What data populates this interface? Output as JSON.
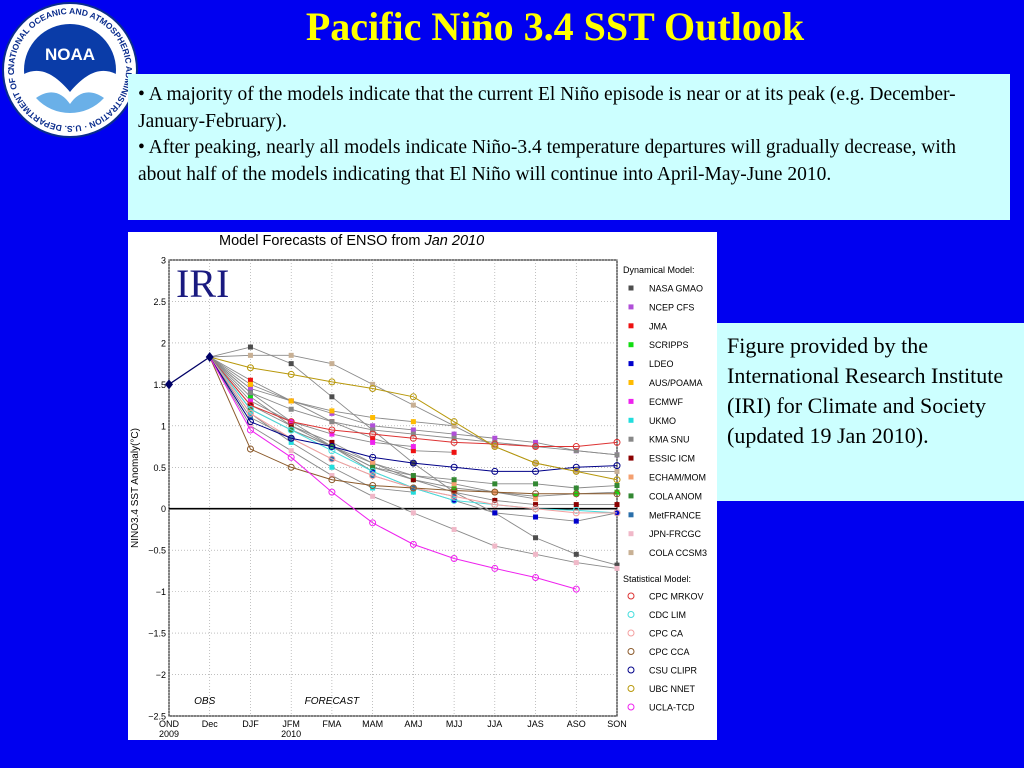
{
  "title": "Pacific Niño 3.4 SST Outlook",
  "logo": {
    "text": "NOAA",
    "ring_text": "NATIONAL OCEANIC AND ATMOSPHERIC ADMINISTRATION · U.S. DEPARTMENT OF COMMERCE"
  },
  "bullets": [
    "• A majority of the models indicate that the current El Niño episode is near or at its peak (e.g. December-January-February).",
    "• After peaking, nearly all models indicate Niño-3.4 temperature departures will gradually decrease, with about half of the models indicating that El Niño will continue into April-May-June 2010."
  ],
  "caption": "Figure provided by the International Research Institute (IRI) for Climate and Society (updated 19 Jan 2010).",
  "chart_data": {
    "type": "line",
    "title_prefix": "Model Forecasts of ENSO from ",
    "title_date": "Jan 2010",
    "watermark": "IRI",
    "ylabel": "NINO3.4 SST Anomaly(°C)",
    "ylim": [
      -2.5,
      3
    ],
    "yticks": [
      "3",
      "2.5",
      "2",
      "1.5",
      "1",
      "0.5",
      "0",
      "−0.5",
      "−1",
      "−1.5",
      "−2",
      "−2.5"
    ],
    "ytick_values": [
      3,
      2.5,
      2,
      1.5,
      1,
      0.5,
      0,
      -0.5,
      -1,
      -1.5,
      -2,
      -2.5
    ],
    "categories": [
      "OND",
      "Dec",
      "DJF",
      "JFM",
      "FMA",
      "MAM",
      "AMJ",
      "MJJ",
      "JJA",
      "JAS",
      "ASO",
      "SON"
    ],
    "year_labels": [
      {
        "label": "2009",
        "at": "OND"
      },
      {
        "label": "2010",
        "at": "JFM"
      }
    ],
    "obs_label": "OBS",
    "forecast_label": "FORECAST",
    "grid": true,
    "observed": [
      1.5,
      1.83
    ],
    "legend_dyn_title": "Dynamical Model:",
    "legend_stat_title": "Statistical Model:",
    "legend_placement": "right",
    "dynamical": [
      {
        "name": "NASA GMAO",
        "color": "#4d4d4d",
        "values": [
          1.95,
          1.75,
          1.35,
          0.95,
          0.55,
          0.2,
          -0.05,
          -0.35,
          -0.55,
          -0.68
        ]
      },
      {
        "name": "NCEP CFS",
        "color": "#b04fd8",
        "values": [
          1.45,
          1.3,
          1.15,
          1.0,
          0.95,
          0.9,
          0.85,
          0.8,
          0.7,
          0.65
        ]
      },
      {
        "name": "JMA",
        "color": "#ee1111",
        "values": [
          1.55,
          1.3,
          1.05,
          0.85,
          0.7,
          0.68
        ]
      },
      {
        "name": "SCRIPPS",
        "color": "#11dd11",
        "values": [
          1.35,
          1.0,
          0.75,
          0.5,
          0.35,
          0.25,
          0.2,
          0.15,
          0.18,
          0.2
        ]
      },
      {
        "name": "LDEO",
        "color": "#0000cc",
        "values": [
          1.4,
          1.05,
          0.75,
          0.45,
          0.25,
          0.1,
          -0.05,
          -0.1,
          -0.15,
          -0.05
        ]
      },
      {
        "name": "AUS/POAMA",
        "color": "#ffbb00",
        "values": [
          1.5,
          1.3,
          1.18,
          1.1,
          1.05,
          1.0
        ]
      },
      {
        "name": "ECMWF",
        "color": "#ee22ee",
        "values": [
          1.3,
          1.05,
          0.9,
          0.8,
          0.75
        ]
      },
      {
        "name": "UKMO",
        "color": "#22dddd",
        "values": [
          1.15,
          0.8,
          0.5,
          0.25,
          0.2
        ]
      },
      {
        "name": "KMA SNU",
        "color": "#888888",
        "values": [
          1.4,
          1.2,
          1.05,
          0.95,
          0.9,
          0.85,
          0.8,
          0.75,
          0.7,
          0.65
        ]
      },
      {
        "name": "ESSIC ICM",
        "color": "#8b0000",
        "values": [
          1.25,
          1.0,
          0.8,
          0.55,
          0.35,
          0.2,
          0.1,
          0.05,
          0.05,
          0.05
        ]
      },
      {
        "name": "ECHAM/MOM",
        "color": "#f4a070",
        "values": [
          1.2,
          0.95,
          0.75,
          0.55,
          0.4,
          0.3,
          0.2,
          0.12
        ]
      },
      {
        "name": "COLA ANOM",
        "color": "#338833",
        "values": [
          1.2,
          0.95,
          0.75,
          0.5,
          0.4,
          0.35,
          0.3,
          0.3,
          0.25,
          0.28
        ]
      },
      {
        "name": "MetFRANCE",
        "color": "#2a6faa",
        "values": [
          1.1,
          0.85,
          0.6,
          0.4,
          0.25,
          0.15
        ]
      },
      {
        "name": "JPN-FRCGC",
        "color": "#f0b8c8",
        "values": [
          1.0,
          0.7,
          0.4,
          0.15,
          -0.05,
          -0.25,
          -0.45,
          -0.55,
          -0.65,
          -0.72
        ]
      },
      {
        "name": "COLA CCSM3",
        "color": "#c8b094",
        "values": [
          1.85,
          1.85,
          1.75,
          1.5,
          1.25,
          1.0,
          0.75,
          0.55,
          0.45,
          0.45
        ]
      }
    ],
    "statistical": [
      {
        "name": "CPC MRKOV",
        "color": "#dd3333",
        "values": [
          1.25,
          1.05,
          0.95,
          0.9,
          0.85,
          0.8,
          0.78,
          0.75,
          0.75,
          0.8
        ]
      },
      {
        "name": "CDC LIM",
        "color": "#44dddd",
        "values": [
          1.2,
          0.95,
          0.7,
          0.45,
          0.25,
          0.1,
          0.05,
          0.0,
          -0.02,
          -0.05
        ]
      },
      {
        "name": "CPC CA",
        "color": "#f4a0a0",
        "values": [
          1.15,
          0.85,
          0.6,
          0.4,
          0.25,
          0.15,
          0.05,
          0.0,
          -0.05,
          -0.05
        ]
      },
      {
        "name": "CPC CCA",
        "color": "#8b5a2b",
        "values": [
          0.72,
          0.5,
          0.35,
          0.28,
          0.25,
          0.22,
          0.2,
          0.18,
          0.18,
          0.18
        ]
      },
      {
        "name": "CSU CLIPR",
        "color": "#000088",
        "values": [
          1.05,
          0.85,
          0.75,
          0.62,
          0.55,
          0.5,
          0.45,
          0.45,
          0.5,
          0.52
        ]
      },
      {
        "name": "UBC NNET",
        "color": "#b8980a",
        "values": [
          1.7,
          1.62,
          1.53,
          1.45,
          1.35,
          1.05,
          0.75,
          0.55,
          0.45,
          0.35
        ]
      },
      {
        "name": "UCLA-TCD",
        "color": "#ee22ee",
        "values": [
          0.95,
          0.62,
          0.2,
          -0.17,
          -0.43,
          -0.6,
          -0.72,
          -0.83,
          -0.97
        ]
      }
    ]
  }
}
